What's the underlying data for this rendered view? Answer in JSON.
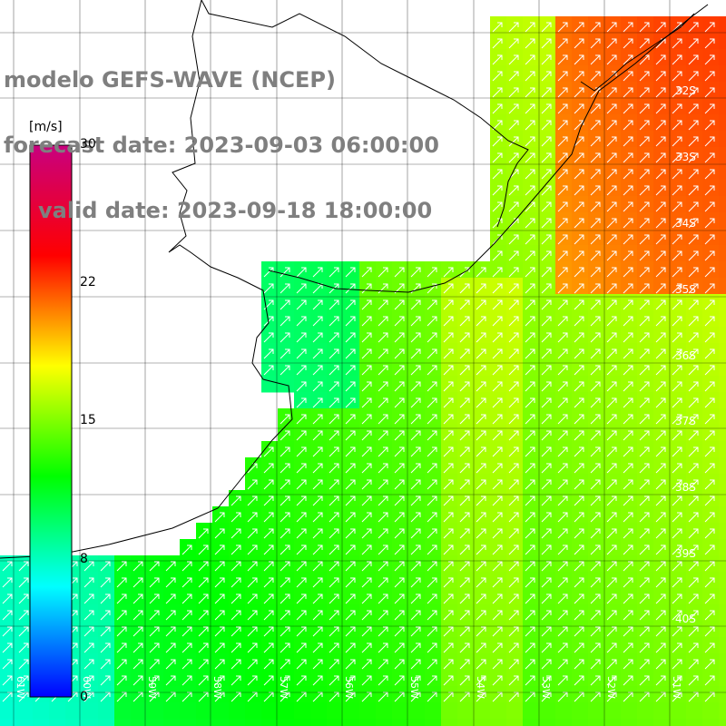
{
  "title": {
    "line1": "modelo GEFS-WAVE (NCEP)",
    "line2": "forecast date: 2023-09-03 06:00:00",
    "line3": "valid date: 2023-09-18 18:00:00"
  },
  "colorbar": {
    "unit": "[m/s]",
    "ticks": [
      "30",
      "22",
      "15",
      "8",
      "0"
    ],
    "stops": [
      "#0000ff",
      "#00ffff",
      "#00ff00",
      "#ffff00",
      "#ff0000",
      "#c8007f"
    ]
  },
  "map": {
    "lat_labels": [
      "32S",
      "33S",
      "34S",
      "35S",
      "36S",
      "37S",
      "38S",
      "39S",
      "40S"
    ],
    "lon_labels": [
      "61W",
      "60W",
      "59W",
      "58W",
      "57W",
      "56W",
      "55W",
      "54W",
      "53W",
      "52W",
      "51W"
    ],
    "colors": {
      "land": "#ffffff",
      "coast": "#000000",
      "grid": "#000000",
      "arrow": "#ffffff"
    }
  }
}
